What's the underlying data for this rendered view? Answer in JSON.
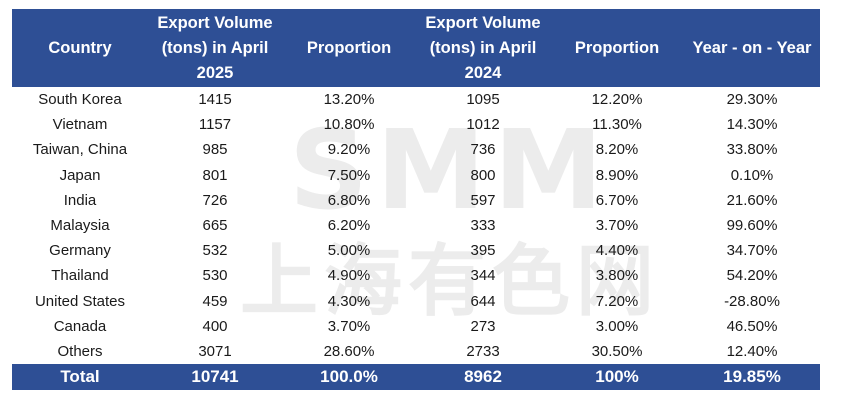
{
  "headers": [
    "Country",
    "Export Volume (tons) in April 2025",
    "Proportion",
    "Export Volume (tons) in April 2024",
    "Proportion",
    "Year - on - Year"
  ],
  "rows": [
    [
      "South Korea",
      "1415",
      "13.20%",
      "1095",
      "12.20%",
      "29.30%"
    ],
    [
      "Vietnam",
      "1157",
      "10.80%",
      "1012",
      "11.30%",
      "14.30%"
    ],
    [
      "Taiwan, China",
      "985",
      "9.20%",
      "736",
      "8.20%",
      "33.80%"
    ],
    [
      "Japan",
      "801",
      "7.50%",
      "800",
      "8.90%",
      "0.10%"
    ],
    [
      "India",
      "726",
      "6.80%",
      "597",
      "6.70%",
      "21.60%"
    ],
    [
      "Malaysia",
      "665",
      "6.20%",
      "333",
      "3.70%",
      "99.60%"
    ],
    [
      "Germany",
      "532",
      "5.00%",
      "395",
      "4.40%",
      "34.70%"
    ],
    [
      "Thailand",
      "530",
      "4.90%",
      "344",
      "3.80%",
      "54.20%"
    ],
    [
      "United States",
      "459",
      "4.30%",
      "644",
      "7.20%",
      "-28.80%"
    ],
    [
      "Canada",
      "400",
      "3.70%",
      "273",
      "3.00%",
      "46.50%"
    ],
    [
      "Others",
      "3071",
      "28.60%",
      "2733",
      "30.50%",
      "12.40%"
    ]
  ],
  "total": [
    "Total",
    "10741",
    "100.0%",
    "8962",
    "100%",
    "19.85%"
  ],
  "watermark": {
    "latin": "SMM",
    "chinese": "上海有色网"
  },
  "colors": {
    "header_bg": "#2e4f95",
    "header_text": "#ffffff",
    "watermark": "#e9e9e9"
  }
}
